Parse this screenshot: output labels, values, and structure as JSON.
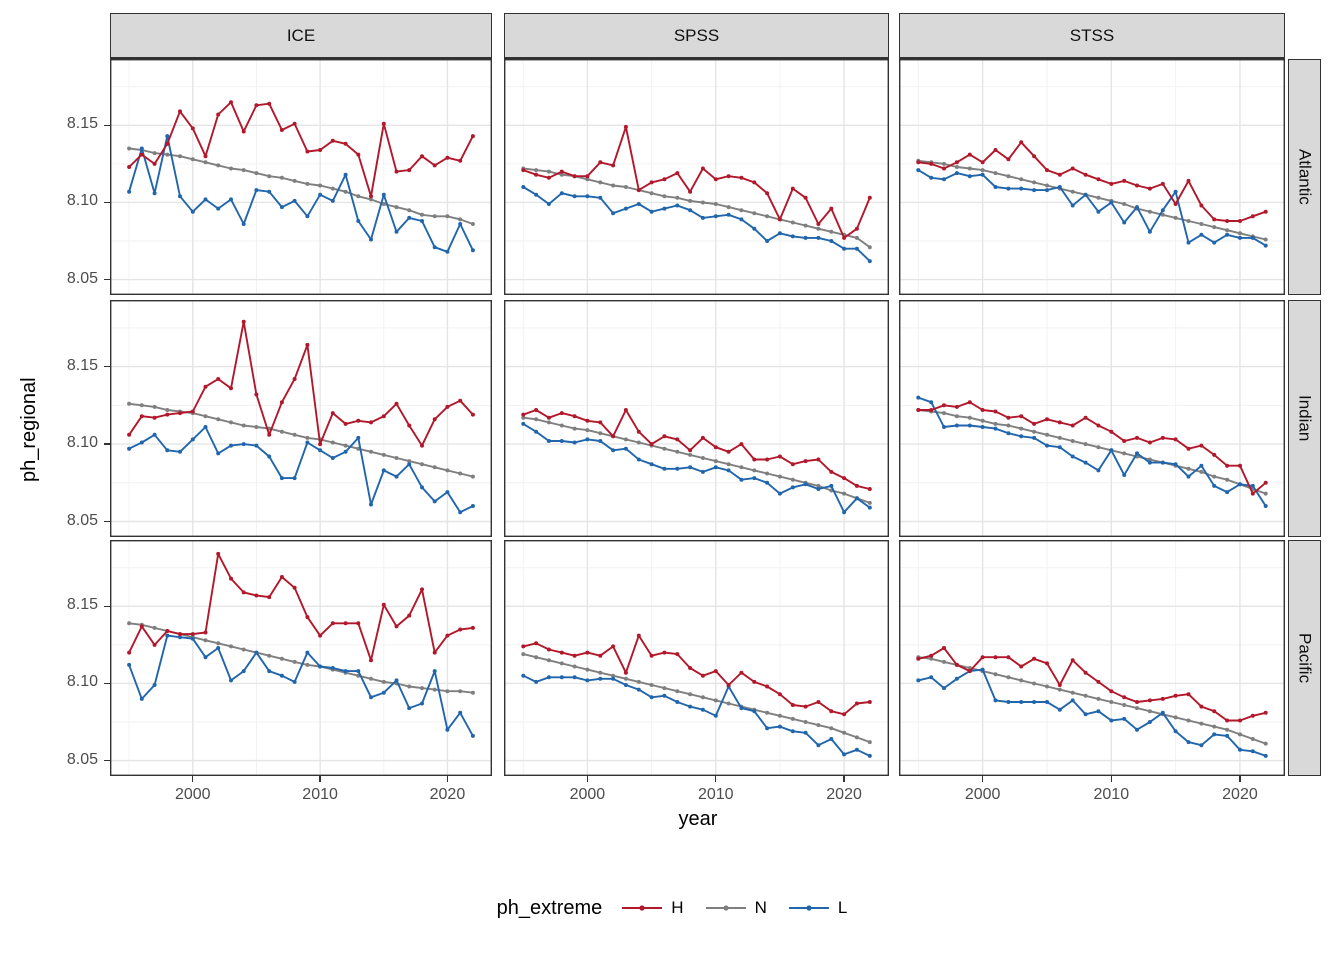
{
  "figure": {
    "y_axis_title": "ph_regional",
    "x_axis_title": "year",
    "legend_title": "ph_extreme"
  },
  "chart_data": {
    "type": "line",
    "title": "",
    "xlabel": "year",
    "ylabel": "ph_regional",
    "legend_title": "ph_extreme",
    "legend_position": "bottom",
    "grid": true,
    "facet_cols": [
      "ICE",
      "SPSS",
      "STSS"
    ],
    "facet_rows": [
      "Atlantic",
      "Indian",
      "Pacific"
    ],
    "x": [
      1995,
      1996,
      1997,
      1998,
      1999,
      2000,
      2001,
      2002,
      2003,
      2004,
      2005,
      2006,
      2007,
      2008,
      2009,
      2010,
      2011,
      2012,
      2013,
      2014,
      2015,
      2016,
      2017,
      2018,
      2019,
      2020,
      2021,
      2022
    ],
    "xlim": [
      1993.5,
      2023.5
    ],
    "ylim": [
      8.04,
      8.193
    ],
    "x_major_ticks": [
      2000,
      2010,
      2020
    ],
    "y_major_ticks": [
      8.05,
      8.1,
      8.15
    ],
    "x_minor_ticks": [
      1995,
      2005,
      2015
    ],
    "y_minor_ticks": [
      8.075,
      8.125,
      8.175
    ],
    "series_order": [
      "H",
      "N",
      "L"
    ],
    "series_colors": {
      "H": "#b2182b",
      "N": "#7f7f7f",
      "L": "#2166ac"
    },
    "panels": [
      {
        "row": "Atlantic",
        "col": "ICE",
        "series": {
          "H": [
            8.123,
            8.131,
            8.125,
            8.138,
            8.159,
            8.148,
            8.13,
            8.157,
            8.165,
            8.146,
            8.163,
            8.164,
            8.147,
            8.151,
            8.133,
            8.134,
            8.14,
            8.138,
            8.131,
            8.104,
            8.151,
            8.12,
            8.121,
            8.13,
            8.124,
            8.129,
            8.127,
            8.143
          ],
          "N": [
            8.135,
            8.134,
            8.132,
            8.131,
            8.13,
            8.128,
            8.126,
            8.124,
            8.122,
            8.121,
            8.119,
            8.117,
            8.116,
            8.114,
            8.112,
            8.111,
            8.109,
            8.107,
            8.104,
            8.102,
            8.099,
            8.097,
            8.095,
            8.092,
            8.091,
            8.091,
            8.089,
            8.086
          ],
          "L": [
            8.107,
            8.135,
            8.106,
            8.143,
            8.104,
            8.094,
            8.102,
            8.096,
            8.102,
            8.086,
            8.108,
            8.107,
            8.097,
            8.101,
            8.091,
            8.105,
            8.101,
            8.118,
            8.088,
            8.076,
            8.105,
            8.081,
            8.09,
            8.088,
            8.071,
            8.068,
            8.086,
            8.069
          ]
        }
      },
      {
        "row": "Atlantic",
        "col": "SPSS",
        "series": {
          "H": [
            8.121,
            8.118,
            8.116,
            8.12,
            8.117,
            8.117,
            8.126,
            8.124,
            8.149,
            8.108,
            8.113,
            8.115,
            8.119,
            8.107,
            8.122,
            8.115,
            8.117,
            8.116,
            8.113,
            8.106,
            8.089,
            8.109,
            8.103,
            8.086,
            8.096,
            8.077,
            8.083,
            8.103
          ],
          "N": [
            8.122,
            8.121,
            8.12,
            8.118,
            8.117,
            8.115,
            8.113,
            8.111,
            8.11,
            8.108,
            8.106,
            8.104,
            8.103,
            8.101,
            8.1,
            8.099,
            8.097,
            8.095,
            8.093,
            8.091,
            8.089,
            8.087,
            8.085,
            8.083,
            8.081,
            8.079,
            8.077,
            8.071
          ],
          "L": [
            8.11,
            8.105,
            8.099,
            8.106,
            8.104,
            8.104,
            8.103,
            8.093,
            8.096,
            8.099,
            8.094,
            8.096,
            8.098,
            8.095,
            8.09,
            8.091,
            8.092,
            8.089,
            8.083,
            8.075,
            8.08,
            8.078,
            8.077,
            8.077,
            8.075,
            8.07,
            8.07,
            8.062
          ]
        }
      },
      {
        "row": "Atlantic",
        "col": "STSS",
        "series": {
          "H": [
            8.126,
            8.125,
            8.122,
            8.126,
            8.131,
            8.126,
            8.134,
            8.128,
            8.139,
            8.13,
            8.121,
            8.118,
            8.122,
            8.118,
            8.115,
            8.112,
            8.114,
            8.111,
            8.109,
            8.112,
            8.099,
            8.114,
            8.098,
            8.089,
            8.088,
            8.088,
            8.091,
            8.094
          ],
          "N": [
            8.127,
            8.126,
            8.125,
            8.123,
            8.122,
            8.121,
            8.119,
            8.117,
            8.115,
            8.113,
            8.111,
            8.109,
            8.107,
            8.105,
            8.103,
            8.101,
            8.099,
            8.096,
            8.094,
            8.092,
            8.09,
            8.088,
            8.086,
            8.084,
            8.082,
            8.08,
            8.078,
            8.076
          ],
          "L": [
            8.121,
            8.116,
            8.115,
            8.119,
            8.117,
            8.118,
            8.11,
            8.109,
            8.109,
            8.108,
            8.108,
            8.11,
            8.098,
            8.105,
            8.094,
            8.1,
            8.087,
            8.097,
            8.081,
            8.095,
            8.107,
            8.074,
            8.079,
            8.074,
            8.079,
            8.077,
            8.077,
            8.072
          ]
        }
      },
      {
        "row": "Indian",
        "col": "ICE",
        "series": {
          "H": [
            8.106,
            8.118,
            8.117,
            8.119,
            8.12,
            8.121,
            8.137,
            8.142,
            8.136,
            8.179,
            8.132,
            8.106,
            8.127,
            8.142,
            8.164,
            8.1,
            8.12,
            8.113,
            8.115,
            8.114,
            8.118,
            8.126,
            8.112,
            8.099,
            8.116,
            8.124,
            8.128,
            8.119
          ],
          "N": [
            8.126,
            8.125,
            8.124,
            8.122,
            8.121,
            8.12,
            8.118,
            8.116,
            8.114,
            8.112,
            8.111,
            8.11,
            8.108,
            8.106,
            8.104,
            8.103,
            8.101,
            8.099,
            8.097,
            8.095,
            8.093,
            8.091,
            8.089,
            8.087,
            8.085,
            8.083,
            8.081,
            8.079
          ],
          "L": [
            8.097,
            8.101,
            8.106,
            8.096,
            8.095,
            8.103,
            8.111,
            8.094,
            8.099,
            8.1,
            8.099,
            8.092,
            8.078,
            8.078,
            8.101,
            8.096,
            8.091,
            8.095,
            8.104,
            8.061,
            8.083,
            8.079,
            8.087,
            8.072,
            8.063,
            8.069,
            8.056,
            8.06
          ]
        }
      },
      {
        "row": "Indian",
        "col": "SPSS",
        "series": {
          "H": [
            8.119,
            8.122,
            8.117,
            8.12,
            8.118,
            8.115,
            8.114,
            8.105,
            8.122,
            8.108,
            8.1,
            8.105,
            8.103,
            8.096,
            8.104,
            8.098,
            8.095,
            8.1,
            8.09,
            8.09,
            8.092,
            8.087,
            8.089,
            8.09,
            8.082,
            8.078,
            8.073,
            8.071
          ],
          "N": [
            8.117,
            8.116,
            8.114,
            8.112,
            8.11,
            8.109,
            8.107,
            8.105,
            8.103,
            8.101,
            8.099,
            8.097,
            8.095,
            8.093,
            8.091,
            8.089,
            8.087,
            8.085,
            8.083,
            8.081,
            8.079,
            8.077,
            8.075,
            8.073,
            8.07,
            8.068,
            8.065,
            8.062
          ],
          "L": [
            8.113,
            8.108,
            8.102,
            8.102,
            8.101,
            8.103,
            8.102,
            8.096,
            8.097,
            8.09,
            8.087,
            8.084,
            8.084,
            8.085,
            8.082,
            8.085,
            8.083,
            8.077,
            8.078,
            8.075,
            8.068,
            8.072,
            8.074,
            8.071,
            8.073,
            8.056,
            8.065,
            8.059
          ]
        }
      },
      {
        "row": "Indian",
        "col": "STSS",
        "series": {
          "H": [
            8.122,
            8.122,
            8.125,
            8.124,
            8.127,
            8.122,
            8.121,
            8.117,
            8.118,
            8.113,
            8.116,
            8.114,
            8.112,
            8.117,
            8.112,
            8.108,
            8.102,
            8.104,
            8.101,
            8.104,
            8.103,
            8.097,
            8.099,
            8.093,
            8.086,
            8.086,
            8.068,
            8.075
          ],
          "N": [
            8.122,
            8.121,
            8.12,
            8.118,
            8.117,
            8.115,
            8.113,
            8.112,
            8.11,
            8.108,
            8.106,
            8.104,
            8.102,
            8.1,
            8.098,
            8.096,
            8.094,
            8.092,
            8.09,
            8.088,
            8.086,
            8.084,
            8.082,
            8.079,
            8.077,
            8.074,
            8.071,
            8.068
          ],
          "L": [
            8.13,
            8.127,
            8.111,
            8.112,
            8.112,
            8.111,
            8.11,
            8.107,
            8.105,
            8.104,
            8.099,
            8.098,
            8.092,
            8.088,
            8.083,
            8.096,
            8.08,
            8.094,
            8.088,
            8.088,
            8.087,
            8.079,
            8.086,
            8.073,
            8.069,
            8.074,
            8.073,
            8.06
          ]
        }
      },
      {
        "row": "Pacific",
        "col": "ICE",
        "series": {
          "H": [
            8.12,
            8.137,
            8.125,
            8.134,
            8.132,
            8.132,
            8.133,
            8.184,
            8.168,
            8.159,
            8.157,
            8.156,
            8.169,
            8.162,
            8.143,
            8.131,
            8.139,
            8.139,
            8.139,
            8.115,
            8.151,
            8.137,
            8.144,
            8.161,
            8.12,
            8.131,
            8.135,
            8.136
          ],
          "N": [
            8.139,
            8.138,
            8.136,
            8.134,
            8.132,
            8.13,
            8.128,
            8.126,
            8.124,
            8.122,
            8.12,
            8.118,
            8.116,
            8.114,
            8.112,
            8.111,
            8.109,
            8.107,
            8.105,
            8.103,
            8.101,
            8.1,
            8.098,
            8.097,
            8.096,
            8.095,
            8.095,
            8.094
          ],
          "L": [
            8.112,
            8.09,
            8.099,
            8.131,
            8.13,
            8.129,
            8.117,
            8.123,
            8.102,
            8.108,
            8.12,
            8.108,
            8.105,
            8.101,
            8.12,
            8.111,
            8.11,
            8.108,
            8.108,
            8.091,
            8.094,
            8.102,
            8.084,
            8.087,
            8.108,
            8.07,
            8.081,
            8.066
          ]
        }
      },
      {
        "row": "Pacific",
        "col": "SPSS",
        "series": {
          "H": [
            8.124,
            8.126,
            8.122,
            8.12,
            8.118,
            8.12,
            8.118,
            8.124,
            8.107,
            8.131,
            8.118,
            8.12,
            8.119,
            8.11,
            8.105,
            8.108,
            8.099,
            8.107,
            8.101,
            8.098,
            8.093,
            8.086,
            8.085,
            8.088,
            8.082,
            8.08,
            8.087,
            8.088
          ],
          "N": [
            8.119,
            8.117,
            8.115,
            8.113,
            8.111,
            8.109,
            8.107,
            8.105,
            8.103,
            8.101,
            8.099,
            8.097,
            8.095,
            8.093,
            8.091,
            8.089,
            8.087,
            8.085,
            8.083,
            8.081,
            8.079,
            8.077,
            8.075,
            8.073,
            8.071,
            8.068,
            8.065,
            8.062
          ],
          "L": [
            8.105,
            8.101,
            8.104,
            8.104,
            8.104,
            8.102,
            8.103,
            8.103,
            8.099,
            8.096,
            8.091,
            8.092,
            8.088,
            8.085,
            8.083,
            8.079,
            8.098,
            8.084,
            8.082,
            8.071,
            8.072,
            8.069,
            8.068,
            8.06,
            8.064,
            8.054,
            8.057,
            8.053
          ]
        }
      },
      {
        "row": "Pacific",
        "col": "STSS",
        "series": {
          "H": [
            8.116,
            8.118,
            8.123,
            8.112,
            8.108,
            8.117,
            8.117,
            8.117,
            8.111,
            8.116,
            8.113,
            8.099,
            8.115,
            8.107,
            8.101,
            8.095,
            8.091,
            8.088,
            8.089,
            8.09,
            8.092,
            8.093,
            8.085,
            8.082,
            8.076,
            8.076,
            8.079,
            8.081
          ],
          "N": [
            8.117,
            8.116,
            8.114,
            8.112,
            8.11,
            8.108,
            8.106,
            8.104,
            8.102,
            8.1,
            8.098,
            8.096,
            8.094,
            8.092,
            8.09,
            8.088,
            8.086,
            8.084,
            8.082,
            8.08,
            8.078,
            8.076,
            8.074,
            8.072,
            8.07,
            8.067,
            8.064,
            8.061
          ],
          "L": [
            8.102,
            8.104,
            8.097,
            8.103,
            8.108,
            8.109,
            8.089,
            8.088,
            8.088,
            8.088,
            8.088,
            8.083,
            8.089,
            8.08,
            8.082,
            8.076,
            8.077,
            8.07,
            8.075,
            8.081,
            8.069,
            8.062,
            8.06,
            8.067,
            8.066,
            8.057,
            8.056,
            8.053
          ]
        }
      }
    ]
  }
}
